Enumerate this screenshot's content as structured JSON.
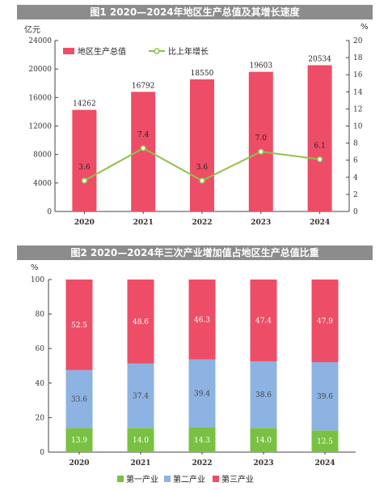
{
  "chart_data": [
    {
      "type": "bar",
      "title": "图1 2020—2024年地区生产总值及其增长速度",
      "categories": [
        "2020",
        "2021",
        "2022",
        "2023",
        "2024"
      ],
      "series": [
        {
          "name": "地区生产总值",
          "type": "bar",
          "values": [
            14262,
            16792,
            18550,
            19603,
            20534
          ]
        },
        {
          "name": "比上年增长",
          "type": "line",
          "values": [
            3.6,
            7.4,
            3.6,
            7.0,
            6.1
          ]
        }
      ],
      "left_unit": "亿元",
      "right_unit": "%",
      "y_ticks": [
        "0",
        "4000",
        "8000",
        "12000",
        "16000",
        "20000",
        "24000"
      ],
      "y2_ticks": [
        "0",
        "2",
        "4",
        "6",
        "8",
        "10",
        "12",
        "14",
        "16",
        "18",
        "20"
      ],
      "ylim": [
        0,
        24000
      ],
      "y2lim": [
        0,
        20
      ],
      "legend_position": "top-left",
      "colors": {
        "bar": "#ee4d67",
        "line": "#8fc14a"
      }
    },
    {
      "type": "bar",
      "stacked": true,
      "title": "图2 2020—2024年三次产业增加值占地区生产总值比重",
      "categories": [
        "2020",
        "2021",
        "2022",
        "2023",
        "2024"
      ],
      "series": [
        {
          "name": "第一产业",
          "values": [
            13.9,
            14.0,
            14.3,
            14.0,
            12.5
          ]
        },
        {
          "name": "第二产业",
          "values": [
            33.6,
            37.4,
            39.4,
            38.6,
            39.6
          ]
        },
        {
          "name": "第三产业",
          "values": [
            52.5,
            48.6,
            46.3,
            47.4,
            47.9
          ]
        }
      ],
      "value_labels": [
        [
          "13.9",
          "14.0",
          "14.3",
          "14.0",
          "12.5"
        ],
        [
          "33.6",
          "37.4",
          "39.4",
          "38.6",
          "39.6"
        ],
        [
          "52.5",
          "48.6",
          "46.3",
          "47.4",
          "47.9"
        ]
      ],
      "unit": "%",
      "y_ticks": [
        "0",
        "20",
        "40",
        "60",
        "80",
        "100"
      ],
      "ylim": [
        0,
        100
      ],
      "legend_position": "bottom",
      "colors": {
        "第一产业": "#7ac143",
        "第二产业": "#8db3e2",
        "第三产业": "#ee4d67"
      }
    }
  ]
}
